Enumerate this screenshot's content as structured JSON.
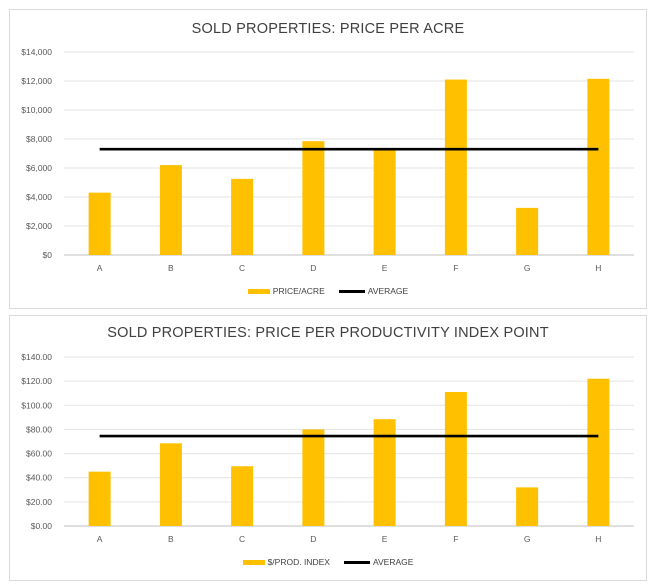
{
  "chart_data": [
    {
      "type": "bar",
      "title": "SOLD PROPERTIES: PRICE PER ACRE",
      "categories": [
        "A",
        "B",
        "C",
        "D",
        "E",
        "F",
        "G",
        "H"
      ],
      "series": [
        {
          "name": "PRICE/ACRE",
          "type": "bar",
          "color": "#FFC000",
          "values": [
            4300,
            6200,
            5250,
            7850,
            7300,
            12100,
            3250,
            12150
          ]
        },
        {
          "name": "AVERAGE",
          "type": "line",
          "color": "#000000",
          "values": [
            7300,
            7300,
            7300,
            7300,
            7300,
            7300,
            7300,
            7300
          ]
        }
      ],
      "yticks": [
        "$0",
        "$2,000",
        "$4,000",
        "$6,000",
        "$8,000",
        "$10,000",
        "$12,000",
        "$14,000"
      ],
      "ylim": [
        0,
        14000
      ],
      "grid": true,
      "legend_position": "bottom"
    },
    {
      "type": "bar",
      "title": "SOLD PROPERTIES: PRICE PER PRODUCTIVITY INDEX  POINT",
      "categories": [
        "A",
        "B",
        "C",
        "D",
        "E",
        "F",
        "G",
        "H"
      ],
      "series": [
        {
          "name": "$/PROD. INDEX",
          "type": "bar",
          "color": "#FFC000",
          "values": [
            45,
            68.5,
            49.5,
            80,
            88.5,
            111,
            32,
            122
          ]
        },
        {
          "name": "AVERAGE",
          "type": "line",
          "color": "#000000",
          "values": [
            74.5,
            74.5,
            74.5,
            74.5,
            74.5,
            74.5,
            74.5,
            74.5
          ]
        }
      ],
      "yticks": [
        "$0.00",
        "$20.00",
        "$40.00",
        "$60.00",
        "$80.00",
        "$100.00",
        "$120.00",
        "$140.00"
      ],
      "ylim": [
        0,
        140
      ],
      "grid": true,
      "legend_position": "bottom"
    }
  ]
}
